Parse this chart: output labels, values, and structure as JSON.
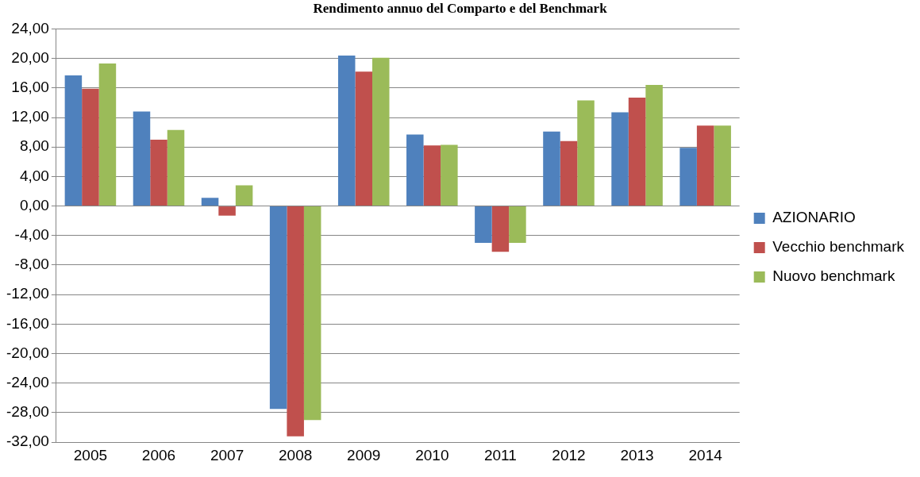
{
  "chart_data": {
    "type": "bar",
    "title": "Rendimento annuo del Comparto e del Benchmark",
    "categories": [
      "2005",
      "2006",
      "2007",
      "2008",
      "2009",
      "2010",
      "2011",
      "2012",
      "2013",
      "2014"
    ],
    "series": [
      {
        "name": "AZIONARIO",
        "color": "#4f81bd",
        "values": [
          17.7,
          12.8,
          1.1,
          -27.5,
          20.4,
          9.7,
          -5.0,
          10.1,
          12.7,
          7.9
        ]
      },
      {
        "name": "Vecchio benchmark",
        "color": "#c0504d",
        "values": [
          15.9,
          9.0,
          -1.3,
          -31.2,
          18.2,
          8.2,
          -6.2,
          8.8,
          14.7,
          10.9
        ]
      },
      {
        "name": "Nuovo benchmark",
        "color": "#9bbb59",
        "values": [
          19.3,
          10.3,
          2.8,
          -29.0,
          20.1,
          8.3,
          -5.0,
          14.3,
          16.4,
          10.9
        ]
      }
    ],
    "ylim": [
      -32,
      24
    ],
    "yticks": [
      {
        "value": -32,
        "label": "-32,00"
      },
      {
        "value": -28,
        "label": "-28,00"
      },
      {
        "value": -24,
        "label": "-24,00"
      },
      {
        "value": -20,
        "label": "-20,00"
      },
      {
        "value": -16,
        "label": "-16,00"
      },
      {
        "value": -12,
        "label": "-12,00"
      },
      {
        "value": -8,
        "label": "-8,00"
      },
      {
        "value": -4,
        "label": "-4,00"
      },
      {
        "value": 0,
        "label": "0,00"
      },
      {
        "value": 4,
        "label": "4,00"
      },
      {
        "value": 8,
        "label": "8,00"
      },
      {
        "value": 12,
        "label": "12,00"
      },
      {
        "value": 16,
        "label": "16,00"
      },
      {
        "value": 20,
        "label": "20,00"
      },
      {
        "value": 24,
        "label": "24,00"
      }
    ],
    "grid": "y",
    "legend": "right"
  }
}
